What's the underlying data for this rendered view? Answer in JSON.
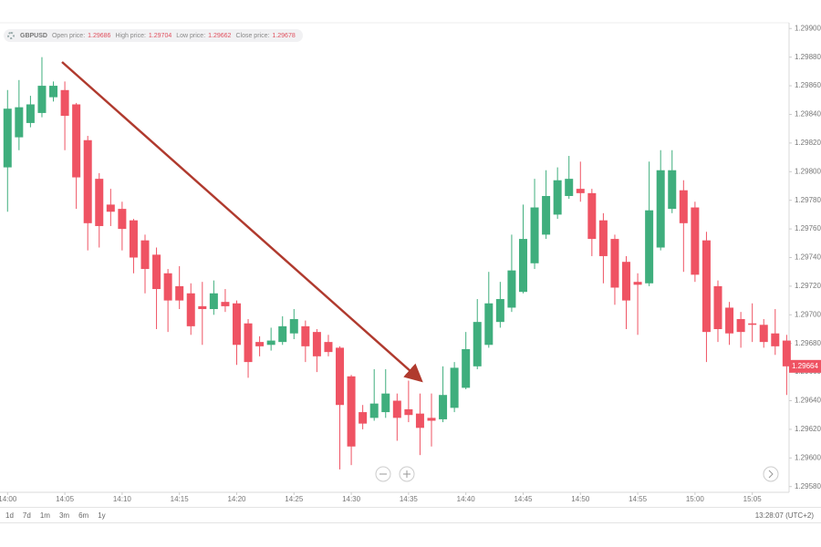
{
  "chart_data": {
    "type": "candlestick",
    "title": "GBPUSD",
    "info": [
      {
        "label": "Open price:",
        "value": 1.29686
      },
      {
        "label": "High price:",
        "value": 1.29704
      },
      {
        "label": "Low price:",
        "value": 1.29662
      },
      {
        "label": "Close price:",
        "value": 1.29678
      }
    ],
    "categories": [
      "14:00",
      null,
      null,
      null,
      null,
      "14:05",
      null,
      null,
      null,
      null,
      "14:10",
      null,
      null,
      null,
      null,
      "14:15",
      null,
      null,
      null,
      null,
      "14:20",
      null,
      null,
      null,
      null,
      "14:25",
      null,
      null,
      null,
      null,
      "14:30",
      null,
      null,
      null,
      null,
      "14:35",
      null,
      null,
      null,
      null,
      "14:40",
      null,
      null,
      null,
      null,
      "14:45",
      null,
      null,
      null,
      null,
      "14:50",
      null,
      null,
      null,
      null,
      "14:55",
      null,
      null,
      null,
      null,
      "15:00",
      null,
      null,
      null,
      null,
      "15:05",
      null,
      null,
      null
    ],
    "open": [
      1.29803,
      1.29824,
      1.29834,
      1.29841,
      1.29852,
      1.29857,
      1.29847,
      1.29822,
      1.29795,
      1.29777,
      1.29774,
      1.29766,
      1.29752,
      1.29742,
      1.29729,
      1.2972,
      1.29715,
      1.29706,
      1.29704,
      1.29709,
      1.29708,
      1.29694,
      1.29681,
      1.29679,
      1.29681,
      1.29687,
      1.29692,
      1.29688,
      1.29681,
      1.29677,
      1.29657,
      1.29632,
      1.29628,
      1.29632,
      1.2964,
      1.29634,
      1.29631,
      1.29628,
      1.29627,
      1.29635,
      1.29649,
      1.29664,
      1.29679,
      1.29695,
      1.29705,
      1.29716,
      1.29736,
      1.29756,
      1.2977,
      1.29783,
      1.29788,
      1.29785,
      1.29766,
      1.29753,
      1.29737,
      1.29723,
      1.29722,
      1.29747,
      1.29774,
      1.29787,
      1.29775,
      1.29752,
      1.2972,
      1.29705,
      1.29697,
      1.29694,
      1.29693,
      1.29687,
      1.29682
    ],
    "high": [
      1.29857,
      1.29864,
      1.29853,
      1.2988,
      1.29863,
      1.29863,
      1.29848,
      1.29825,
      1.29799,
      1.29788,
      1.29779,
      1.29767,
      1.29756,
      1.29747,
      1.29732,
      1.29734,
      1.29722,
      1.29723,
      1.29724,
      1.29718,
      1.2971,
      1.29697,
      1.29685,
      1.29691,
      1.29699,
      1.29704,
      1.29696,
      1.2969,
      1.29686,
      1.29678,
      1.29658,
      1.29637,
      1.29662,
      1.29662,
      1.29645,
      1.29654,
      1.29645,
      1.29645,
      1.29664,
      1.29667,
      1.29688,
      1.29711,
      1.2973,
      1.29723,
      1.29756,
      1.29777,
      1.29795,
      1.29801,
      1.29803,
      1.29811,
      1.29807,
      1.29788,
      1.29771,
      1.29756,
      1.29741,
      1.29729,
      1.29807,
      1.29815,
      1.29815,
      1.29794,
      1.29779,
      1.29758,
      1.29724,
      1.29709,
      1.29702,
      1.29708,
      1.29697,
      1.29704,
      1.29686
    ],
    "low": [
      1.29772,
      1.29815,
      1.29831,
      1.29838,
      1.29849,
      1.29815,
      1.29774,
      1.29745,
      1.29747,
      1.29762,
      1.29745,
      1.29729,
      1.29715,
      1.2969,
      1.29688,
      1.29704,
      1.29686,
      1.29679,
      1.297,
      1.29702,
      1.29665,
      1.29656,
      1.29671,
      1.29675,
      1.29679,
      1.29683,
      1.29667,
      1.2966,
      1.29671,
      1.29592,
      1.29595,
      1.2962,
      1.29626,
      1.29628,
      1.29612,
      1.29625,
      1.29602,
      1.29608,
      1.29625,
      1.29632,
      1.29648,
      1.29662,
      1.29677,
      1.29691,
      1.29702,
      1.29715,
      1.29732,
      1.29753,
      1.29767,
      1.29781,
      1.29779,
      1.29741,
      1.29722,
      1.29707,
      1.2969,
      1.29686,
      1.2972,
      1.29745,
      1.29771,
      1.2973,
      1.29723,
      1.29667,
      1.29681,
      1.29679,
      1.29677,
      1.29681,
      1.29677,
      1.29672,
      1.29644
    ],
    "close": [
      1.29844,
      1.29845,
      1.29847,
      1.2986,
      1.2986,
      1.29839,
      1.29796,
      1.29764,
      1.29762,
      1.29772,
      1.2976,
      1.2974,
      1.29732,
      1.29718,
      1.2971,
      1.2971,
      1.29692,
      1.29704,
      1.29715,
      1.29706,
      1.29679,
      1.29667,
      1.29678,
      1.29682,
      1.29692,
      1.29697,
      1.29678,
      1.29671,
      1.29674,
      1.29637,
      1.29608,
      1.29624,
      1.29638,
      1.29645,
      1.29628,
      1.2963,
      1.29621,
      1.29626,
      1.29644,
      1.29663,
      1.29676,
      1.29695,
      1.29708,
      1.29711,
      1.29731,
      1.29753,
      1.29775,
      1.29783,
      1.29794,
      1.29795,
      1.29785,
      1.29753,
      1.29741,
      1.29719,
      1.2971,
      1.29721,
      1.29773,
      1.29801,
      1.29801,
      1.29764,
      1.29728,
      1.29688,
      1.2969,
      1.29687,
      1.29688,
      1.29693,
      1.29681,
      1.29678,
      1.29664
    ],
    "up_color": "#3fae7d",
    "down_color": "#ef5363",
    "ylim": [
      1.29576,
      1.29904
    ],
    "yticks": [
      {
        "value": 1.2958,
        "label": "1.29580"
      },
      {
        "value": 1.296,
        "label": "1.29600"
      },
      {
        "value": 1.2962,
        "label": "1.29620"
      },
      {
        "value": 1.2964,
        "label": "1.29640"
      },
      {
        "value": 1.2966,
        "label": "1.29660"
      },
      {
        "value": 1.2968,
        "label": "1.29680"
      },
      {
        "value": 1.297,
        "label": "1.29700"
      },
      {
        "value": 1.2972,
        "label": "1.29720"
      },
      {
        "value": 1.2974,
        "label": "1.29740"
      },
      {
        "value": 1.2976,
        "label": "1.29760"
      },
      {
        "value": 1.2978,
        "label": "1.29780"
      },
      {
        "value": 1.298,
        "label": "1.29800"
      },
      {
        "value": 1.2982,
        "label": "1.29820"
      },
      {
        "value": 1.2984,
        "label": "1.29840"
      },
      {
        "value": 1.2986,
        "label": "1.29860"
      },
      {
        "value": 1.2988,
        "label": "1.29880"
      },
      {
        "value": 1.299,
        "label": "1.29900"
      }
    ],
    "last_price": 1.29664,
    "ranges": [
      "1d",
      "7d",
      "1m",
      "3m",
      "6m",
      "1y"
    ],
    "clock": "13:28:07 (UTC+2)"
  }
}
